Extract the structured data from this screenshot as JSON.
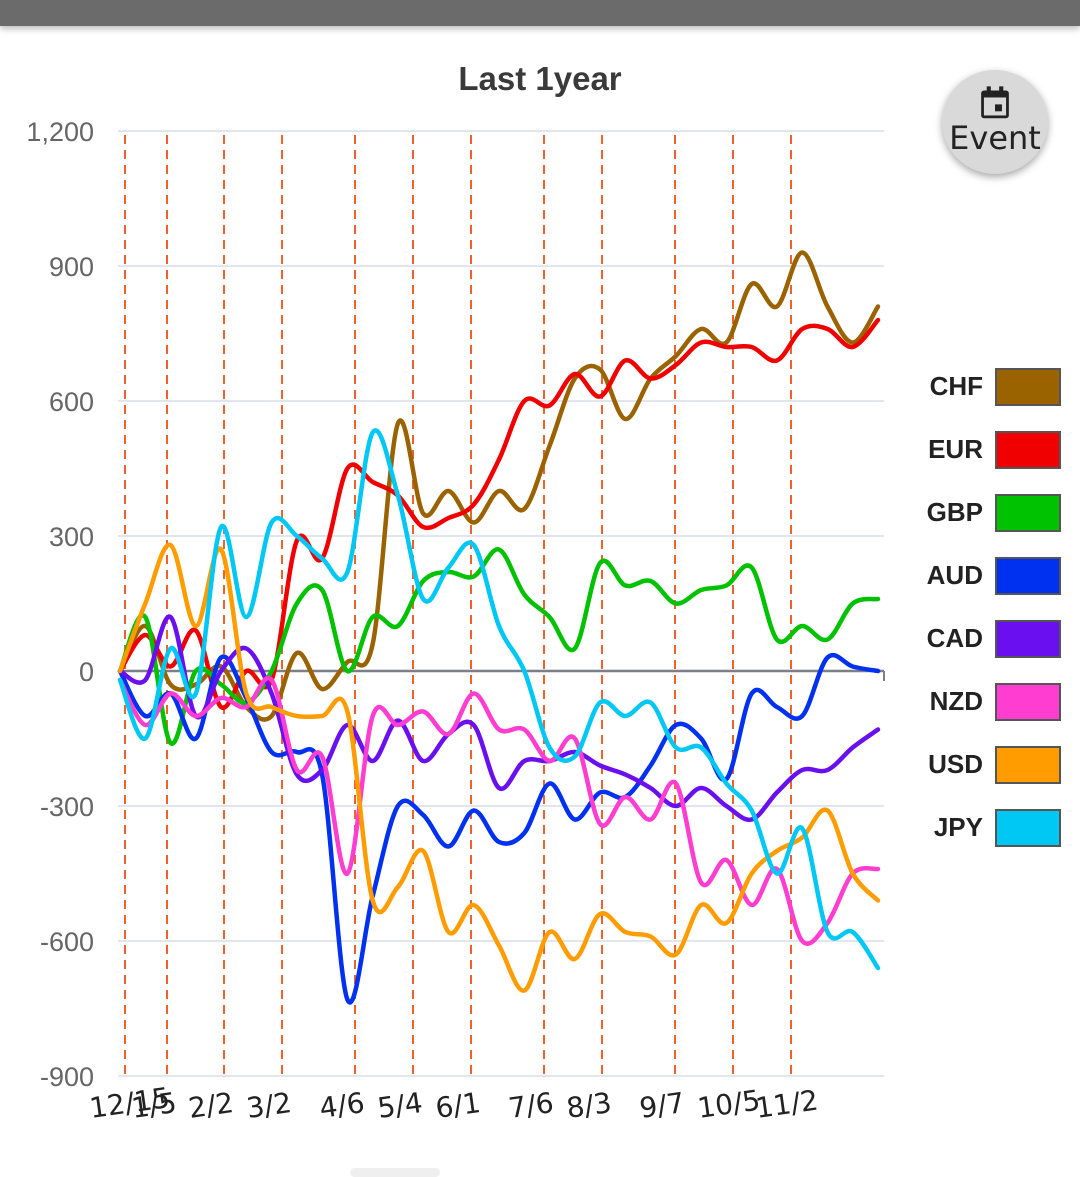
{
  "chart_data": {
    "type": "line",
    "title": "Last 1year",
    "ylim": [
      -900,
      1200
    ],
    "y_ticks": [
      "1,200",
      "900",
      "600",
      "300",
      "0",
      "-300",
      "-600",
      "-900"
    ],
    "y_tick_values": [
      1200,
      900,
      600,
      300,
      0,
      -300,
      -600,
      -900
    ],
    "x_tick_labels": [
      "12/15",
      "1/5",
      "2/2",
      "3/2",
      "4/6",
      "5/4",
      "6/1",
      "7/6",
      "8/3",
      "9/7",
      "10/5",
      "11/2"
    ],
    "event_lines": 12,
    "grid": "horizontal",
    "legend_position": "right",
    "series": [
      {
        "name": "CHF",
        "color": "#9a6300",
        "values": [
          0,
          100,
          -30,
          -30,
          10,
          -80,
          -100,
          40,
          -40,
          20,
          60,
          550,
          350,
          400,
          330,
          400,
          360,
          500,
          650,
          670,
          560,
          650,
          700,
          760,
          730,
          860,
          810,
          930,
          810,
          730,
          810
        ]
      },
      {
        "name": "EUR",
        "color": "#f00000",
        "values": [
          0,
          80,
          10,
          90,
          -80,
          0,
          -20,
          290,
          250,
          450,
          420,
          390,
          320,
          340,
          370,
          470,
          600,
          590,
          660,
          610,
          690,
          650,
          680,
          730,
          720,
          720,
          690,
          760,
          760,
          720,
          780
        ]
      },
      {
        "name": "GBP",
        "color": "#00c200",
        "values": [
          0,
          120,
          -160,
          0,
          -30,
          -70,
          0,
          150,
          180,
          0,
          120,
          100,
          200,
          220,
          210,
          270,
          170,
          120,
          50,
          240,
          190,
          200,
          150,
          180,
          190,
          230,
          70,
          100,
          70,
          150,
          160
        ]
      },
      {
        "name": "AUD",
        "color": "#0030f0",
        "values": [
          0,
          -100,
          -50,
          -150,
          30,
          -60,
          -180,
          -180,
          -230,
          -730,
          -500,
          -300,
          -320,
          -390,
          -310,
          -380,
          -360,
          -250,
          -330,
          -270,
          -280,
          -210,
          -120,
          -150,
          -240,
          -50,
          -80,
          -100,
          30,
          10,
          0
        ]
      },
      {
        "name": "CAD",
        "color": "#6a10f0",
        "values": [
          0,
          -20,
          120,
          -100,
          0,
          50,
          -50,
          -230,
          -220,
          -120,
          -200,
          -110,
          -200,
          -140,
          -120,
          -260,
          -200,
          -200,
          -180,
          -210,
          -230,
          -260,
          -300,
          -260,
          -300,
          -330,
          -270,
          -220,
          -220,
          -170,
          -130
        ]
      },
      {
        "name": "NZD",
        "color": "#ff3dd0",
        "values": [
          -20,
          -120,
          -50,
          -100,
          -60,
          -80,
          -20,
          -220,
          -190,
          -450,
          -100,
          -120,
          -90,
          -140,
          -50,
          -130,
          -130,
          -200,
          -150,
          -340,
          -280,
          -330,
          -250,
          -470,
          -420,
          -520,
          -440,
          -600,
          -560,
          -450,
          -440
        ]
      },
      {
        "name": "USD",
        "color": "#ff9d00",
        "values": [
          0,
          150,
          280,
          100,
          270,
          -50,
          -80,
          -100,
          -100,
          -90,
          -510,
          -480,
          -400,
          -580,
          -520,
          -610,
          -710,
          -580,
          -640,
          -540,
          -580,
          -590,
          -630,
          -520,
          -560,
          -450,
          -400,
          -370,
          -310,
          -450,
          -510
        ]
      },
      {
        "name": "JPY",
        "color": "#00c8f5",
        "values": [
          -20,
          -150,
          50,
          -50,
          320,
          120,
          330,
          300,
          250,
          220,
          530,
          390,
          160,
          230,
          280,
          100,
          0,
          -170,
          -190,
          -70,
          -100,
          -70,
          -170,
          -170,
          -250,
          -310,
          -450,
          -350,
          -580,
          -580,
          -660
        ]
      }
    ]
  },
  "event_button": {
    "label": "Event",
    "icon": "calendar-icon"
  }
}
